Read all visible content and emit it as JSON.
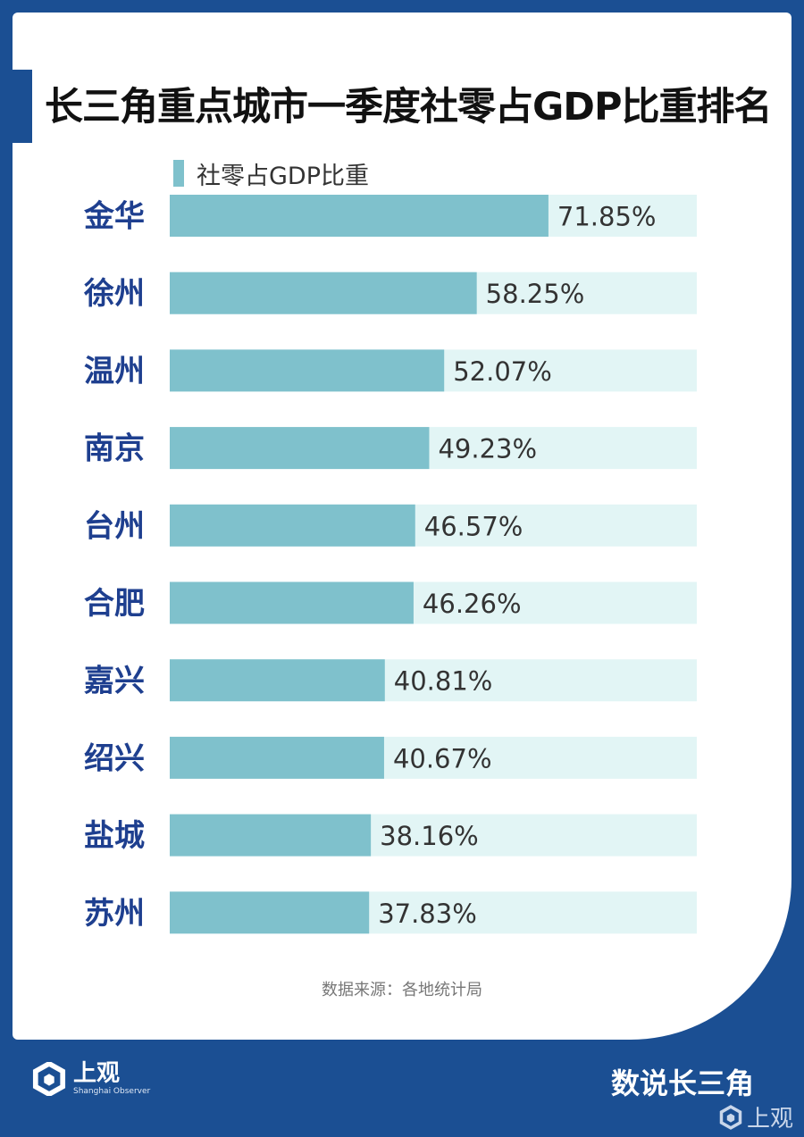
{
  "header": {
    "title": "长三角重点城市一季度社零占GDP比重排名"
  },
  "legend": {
    "label": "社零占GDP比重"
  },
  "footer": {
    "source": "数据来源：各地统计局",
    "logo": "上观",
    "logo_sub": "Shanghai Observer",
    "section": "数说长三角",
    "watermark": "上观"
  },
  "colors": {
    "bar": "#7fc1cc",
    "track": "#e2f5f5",
    "label": "#1e3f8f",
    "background": "#1b4f93"
  },
  "chart_data": {
    "type": "bar",
    "orientation": "horizontal",
    "categories": [
      "金华",
      "徐州",
      "温州",
      "南京",
      "台州",
      "合肥",
      "嘉兴",
      "绍兴",
      "盐城",
      "苏州"
    ],
    "series": [
      {
        "name": "社零占GDP比重",
        "values": [
          71.85,
          58.25,
          52.07,
          49.23,
          46.57,
          46.26,
          40.81,
          40.67,
          38.16,
          37.83
        ]
      }
    ],
    "value_labels": [
      "71.85%",
      "58.25%",
      "52.07%",
      "49.23%",
      "46.57%",
      "46.26%",
      "40.81%",
      "40.67%",
      "38.16%",
      "37.83%"
    ],
    "unit": "%",
    "xlim": [
      0,
      100
    ],
    "legend": "top-left",
    "grid": false
  }
}
